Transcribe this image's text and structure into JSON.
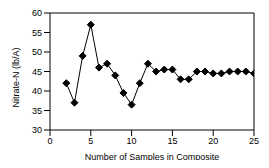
{
  "chart_data": {
    "type": "line",
    "x_label": "Number of Samples in Composite",
    "y_label": "Nitrate-N (lb/A)",
    "x": [
      2,
      3,
      4,
      5,
      6,
      7,
      8,
      9,
      10,
      11,
      12,
      13,
      14,
      15,
      16,
      17,
      18,
      19,
      20,
      21,
      22,
      23,
      24,
      25
    ],
    "values": [
      42,
      37,
      49,
      57,
      46,
      47,
      44,
      39.5,
      36.5,
      42,
      47,
      45,
      45.5,
      45.5,
      43,
      43,
      45,
      45,
      44.5,
      44.5,
      45,
      45,
      45,
      44.5
    ],
    "color": "#000000",
    "marker": "diamond",
    "line_style": "solid",
    "xlim": [
      0,
      25
    ],
    "xticks": [
      0,
      5,
      10,
      15,
      20,
      25
    ],
    "ylim": [
      30,
      60
    ],
    "yticks": [
      30,
      35,
      40,
      45,
      50,
      55,
      60
    ],
    "grid": false
  }
}
